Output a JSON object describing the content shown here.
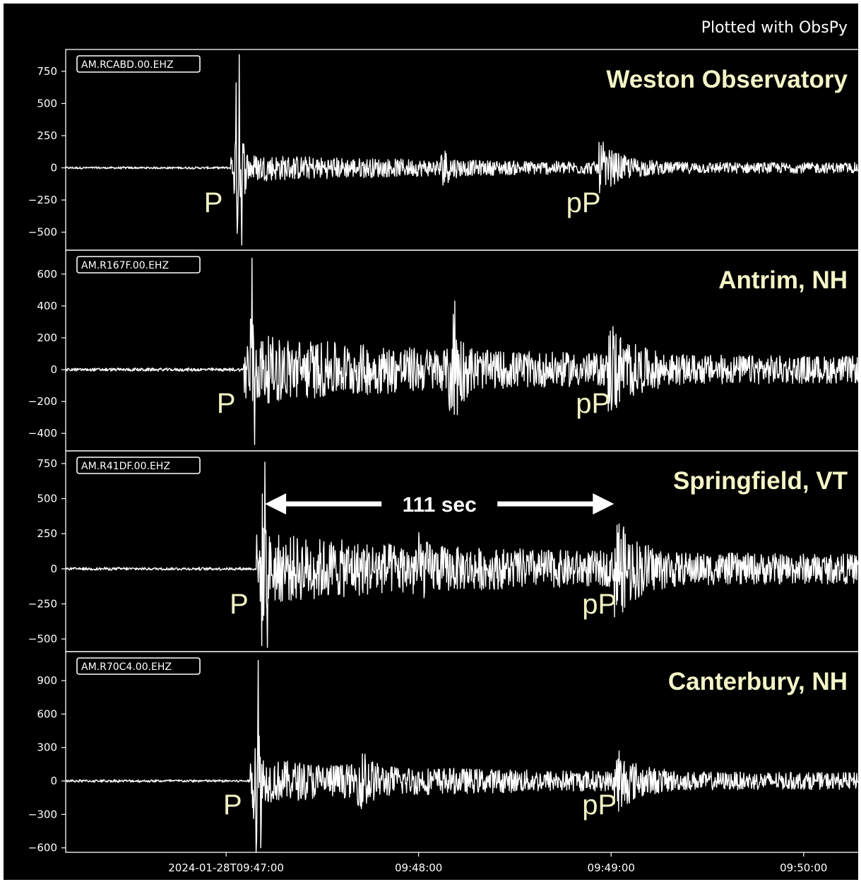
{
  "credit": "Plotted with ObsPy",
  "chart_data": {
    "type": "line",
    "title": "",
    "xlabel": "",
    "ylabel": "",
    "grid": false,
    "x_tick_labels": [
      "2024-01-28T09:47:00",
      "09:48:00",
      "09:49:00",
      "09:50:00"
    ],
    "x_ticks_seconds_after_0947": [
      0,
      60,
      120,
      180
    ],
    "x_range_seconds_after_0947": [
      -50,
      197
    ],
    "annotation": {
      "label": "111 sec",
      "start_seconds": 11,
      "end_seconds": 122,
      "panel": 2
    },
    "panels": [
      {
        "station": "AM.RCABD.00.EHZ",
        "location": "Weston Observatory",
        "ylim": [
          -640,
          920
        ],
        "yticks": [
          750,
          500,
          250,
          0,
          -250,
          -500
        ],
        "ytick_labels": [
          "750",
          "500",
          "250",
          "0",
          "−250",
          "−500"
        ],
        "phases": [
          {
            "label": "P",
            "time": 3,
            "peak_pos": 880,
            "peak_neg": -600
          },
          {
            "label": "pP",
            "time": 117,
            "peak_pos": 200,
            "peak_neg": -130
          }
        ],
        "secondary": {
          "time": 68,
          "amp": 130
        },
        "noise_pre": 10,
        "coda": 75,
        "noise_end": 38
      },
      {
        "station": "AM.R167F.00.EHZ",
        "location": "Antrim, NH",
        "ylim": [
          -510,
          750
        ],
        "yticks": [
          600,
          400,
          200,
          0,
          -200,
          -400
        ],
        "ytick_labels": [
          "600",
          "400",
          "200",
          "0",
          "−200",
          "−400"
        ],
        "phases": [
          {
            "label": "P",
            "time": 7,
            "peak_pos": 700,
            "peak_neg": -470
          },
          {
            "label": "pP",
            "time": 120,
            "peak_pos": 270,
            "peak_neg": -220
          }
        ],
        "secondary": {
          "time": 71,
          "amp": 430
        },
        "noise_pre": 12,
        "coda": 145,
        "noise_end": 80
      },
      {
        "station": "AM.R41DF.00.EHZ",
        "location": "Springfield, VT",
        "ylim": [
          -590,
          840
        ],
        "yticks": [
          750,
          500,
          250,
          0,
          -250,
          -500
        ],
        "ytick_labels": [
          "750",
          "500",
          "250",
          "0",
          "−250",
          "−500"
        ],
        "phases": [
          {
            "label": "P",
            "time": 11,
            "peak_pos": 760,
            "peak_neg": -560
          },
          {
            "label": "pP",
            "time": 122,
            "peak_pos": 320,
            "peak_neg": -260
          }
        ],
        "secondary": {
          "time": 60,
          "amp": 140
        },
        "noise_pre": 12,
        "coda": 160,
        "noise_end": 100
      },
      {
        "station": "AM.R70C4.00.EHZ",
        "location": "Canterbury, NH",
        "ylim": [
          -640,
          1160
        ],
        "yticks": [
          900,
          600,
          300,
          0,
          -300,
          -600
        ],
        "ytick_labels": [
          "900",
          "600",
          "300",
          "0",
          "−300",
          "−600"
        ],
        "phases": [
          {
            "label": "P",
            "time": 9,
            "peak_pos": 1080,
            "peak_neg": -600
          },
          {
            "label": "pP",
            "time": 122,
            "peak_pos": 270,
            "peak_neg": -230
          }
        ],
        "secondary": {
          "time": 43,
          "amp": 240
        },
        "noise_pre": 14,
        "coda": 130,
        "noise_end": 70
      }
    ]
  }
}
